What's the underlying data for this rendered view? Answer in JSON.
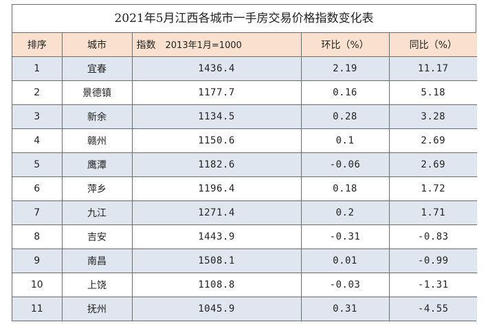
{
  "title": "2021年5月江西各城市一手房交易价格指数变化表",
  "headers": {
    "rank": "排序",
    "city": "城市",
    "index_label": "指数",
    "index_base": "2013年1月=1000",
    "mom": "环比（%）",
    "yoy": "同比（%）"
  },
  "rows": [
    {
      "rank": "1",
      "city": "宜春",
      "index": "1436.4",
      "mom": "2.19",
      "yoy": "11.17"
    },
    {
      "rank": "2",
      "city": "景德镇",
      "index": "1177.7",
      "mom": "0.16",
      "yoy": "5.18"
    },
    {
      "rank": "3",
      "city": "新余",
      "index": "1134.5",
      "mom": "0.28",
      "yoy": "3.28"
    },
    {
      "rank": "4",
      "city": "赣州",
      "index": "1150.6",
      "mom": "0.1",
      "yoy": "2.69"
    },
    {
      "rank": "5",
      "city": "鹰潭",
      "index": "1182.6",
      "mom": "-0.06",
      "yoy": "2.69"
    },
    {
      "rank": "6",
      "city": "萍乡",
      "index": "1196.4",
      "mom": "0.18",
      "yoy": "1.72"
    },
    {
      "rank": "7",
      "city": "九江",
      "index": "1271.4",
      "mom": "0.2",
      "yoy": "1.71"
    },
    {
      "rank": "8",
      "city": "吉安",
      "index": "1443.9",
      "mom": "-0.31",
      "yoy": "-0.83"
    },
    {
      "rank": "9",
      "city": "南昌",
      "index": "1508.1",
      "mom": "0.01",
      "yoy": "-0.99"
    },
    {
      "rank": "10",
      "city": "上饶",
      "index": "1108.8",
      "mom": "-0.03",
      "yoy": "-1.31"
    },
    {
      "rank": "11",
      "city": "抚州",
      "index": "1045.9",
      "mom": "0.31",
      "yoy": "-4.55"
    }
  ],
  "colors": {
    "header_bg": "#f9e0cf",
    "shaded_row_bg": "#dfe6ef",
    "border": "#6b6b6b"
  }
}
